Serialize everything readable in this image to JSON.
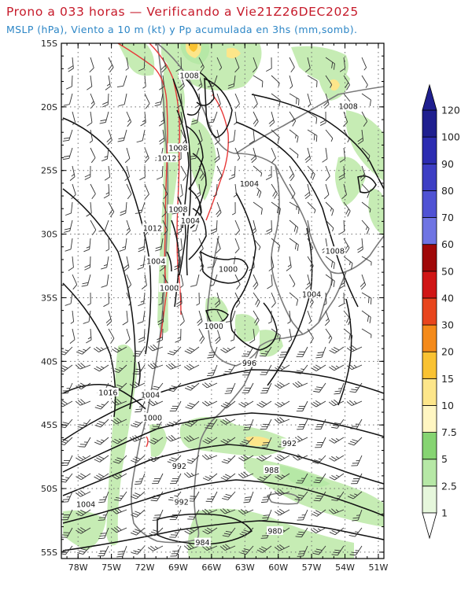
{
  "header": {
    "title": "Prono a 033 horas — Verificando a Vie21Z26DEC2025",
    "subtitle": "MSLP (hPa), Viento a 10 m (kt) y Pp acumulada en 3hs (mm,somb)."
  },
  "map": {
    "lat_labels": [
      "15S",
      "20S",
      "25S",
      "30S",
      "35S",
      "40S",
      "45S",
      "50S",
      "55S"
    ],
    "lon_labels": [
      "78W",
      "75W",
      "72W",
      "69W",
      "66W",
      "63W",
      "60W",
      "57W",
      "54W",
      "51W"
    ],
    "isobar_labels": [
      {
        "text": "1008",
        "lon": -68.0,
        "lat": -17.6
      },
      {
        "text": "1008",
        "lon": -53.7,
        "lat": -20.0
      },
      {
        "text": "1008",
        "lon": -69.0,
        "lat": -23.3
      },
      {
        "text": "1012",
        "lon": -70.0,
        "lat": -24.1
      },
      {
        "text": "1004",
        "lon": -62.6,
        "lat": -26.1
      },
      {
        "text": "1008",
        "lon": -69.0,
        "lat": -28.1
      },
      {
        "text": "1004",
        "lon": -67.9,
        "lat": -29.0
      },
      {
        "text": "1012",
        "lon": -71.3,
        "lat": -29.6
      },
      {
        "text": "1004",
        "lon": -71.0,
        "lat": -32.2
      },
      {
        "text": "1000",
        "lon": -64.5,
        "lat": -32.8
      },
      {
        "text": "1008",
        "lon": -54.9,
        "lat": -31.4
      },
      {
        "text": "1004",
        "lon": -57.0,
        "lat": -34.8
      },
      {
        "text": "1000",
        "lon": -69.8,
        "lat": -34.3
      },
      {
        "text": "1000",
        "lon": -65.8,
        "lat": -37.3
      },
      {
        "text": "996",
        "lon": -62.6,
        "lat": -40.2
      },
      {
        "text": "1016",
        "lon": -75.3,
        "lat": -42.5
      },
      {
        "text": "1004",
        "lon": -71.5,
        "lat": -42.7
      },
      {
        "text": "1000",
        "lon": -71.3,
        "lat": -44.5
      },
      {
        "text": "992",
        "lon": -59.0,
        "lat": -46.5
      },
      {
        "text": "992",
        "lon": -68.9,
        "lat": -48.3
      },
      {
        "text": "988",
        "lon": -60.6,
        "lat": -48.6
      },
      {
        "text": "992",
        "lon": -68.7,
        "lat": -51.1
      },
      {
        "text": "1004",
        "lon": -77.3,
        "lat": -51.3
      },
      {
        "text": "980",
        "lon": -60.3,
        "lat": -53.4
      },
      {
        "text": "984",
        "lon": -66.8,
        "lat": -54.3
      }
    ]
  },
  "colorbar": {
    "labels": [
      "1",
      "2.5",
      "5",
      "7.5",
      "10",
      "15",
      "20",
      "30",
      "40",
      "50",
      "60",
      "70",
      "80",
      "90",
      "100",
      "120"
    ],
    "colors": [
      "#ffffff",
      "#e6f7dc",
      "#b6e8a6",
      "#86d472",
      "#fff6c2",
      "#fde68a",
      "#f9c232",
      "#f48a1a",
      "#e8451d",
      "#d01515",
      "#a00808",
      "#6f74e3",
      "#4f52d4",
      "#3d3ec4",
      "#2c2cb1",
      "#1f1f8f"
    ]
  },
  "colors": {
    "title": "#c61a2a",
    "subtitle": "#2c86c6",
    "coast": "#777777",
    "isobar": "#111111",
    "red_contour": "#e83838"
  }
}
